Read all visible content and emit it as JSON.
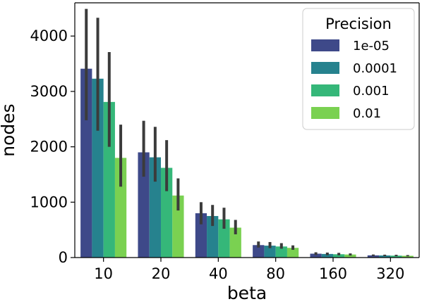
{
  "chart_data": {
    "type": "bar",
    "xlabel": "beta",
    "ylabel": "nodes",
    "ylim": [
      0,
      4600
    ],
    "yticks": [
      0,
      1000,
      2000,
      3000,
      4000
    ],
    "categories": [
      "10",
      "20",
      "40",
      "80",
      "160",
      "320"
    ],
    "grid": false,
    "error_bars": true,
    "legend": {
      "title": "Precision",
      "placement": "top-right"
    },
    "series": [
      {
        "name": "1e-05",
        "color": "#3e4989",
        "values": [
          3410,
          1900,
          800,
          225,
          70,
          40
        ],
        "error_low": [
          2480,
          1460,
          600,
          180,
          45,
          28
        ],
        "error_high": [
          4490,
          2470,
          1000,
          290,
          95,
          55
        ]
      },
      {
        "name": "0.0001",
        "color": "#26828e",
        "values": [
          3230,
          1810,
          750,
          215,
          65,
          38
        ],
        "error_low": [
          2290,
          1370,
          570,
          170,
          42,
          26
        ],
        "error_high": [
          4330,
          2360,
          950,
          280,
          90,
          52
        ]
      },
      {
        "name": "0.001",
        "color": "#35b779",
        "values": [
          2810,
          1620,
          690,
          200,
          60,
          35
        ],
        "error_low": [
          2000,
          1200,
          520,
          160,
          40,
          24
        ],
        "error_high": [
          3710,
          2120,
          900,
          260,
          85,
          50
        ]
      },
      {
        "name": "0.01",
        "color": "#7ad151",
        "values": [
          1800,
          1120,
          540,
          175,
          55,
          32
        ],
        "error_low": [
          1280,
          850,
          420,
          140,
          35,
          22
        ],
        "error_high": [
          2400,
          1430,
          680,
          220,
          75,
          45
        ]
      }
    ]
  }
}
